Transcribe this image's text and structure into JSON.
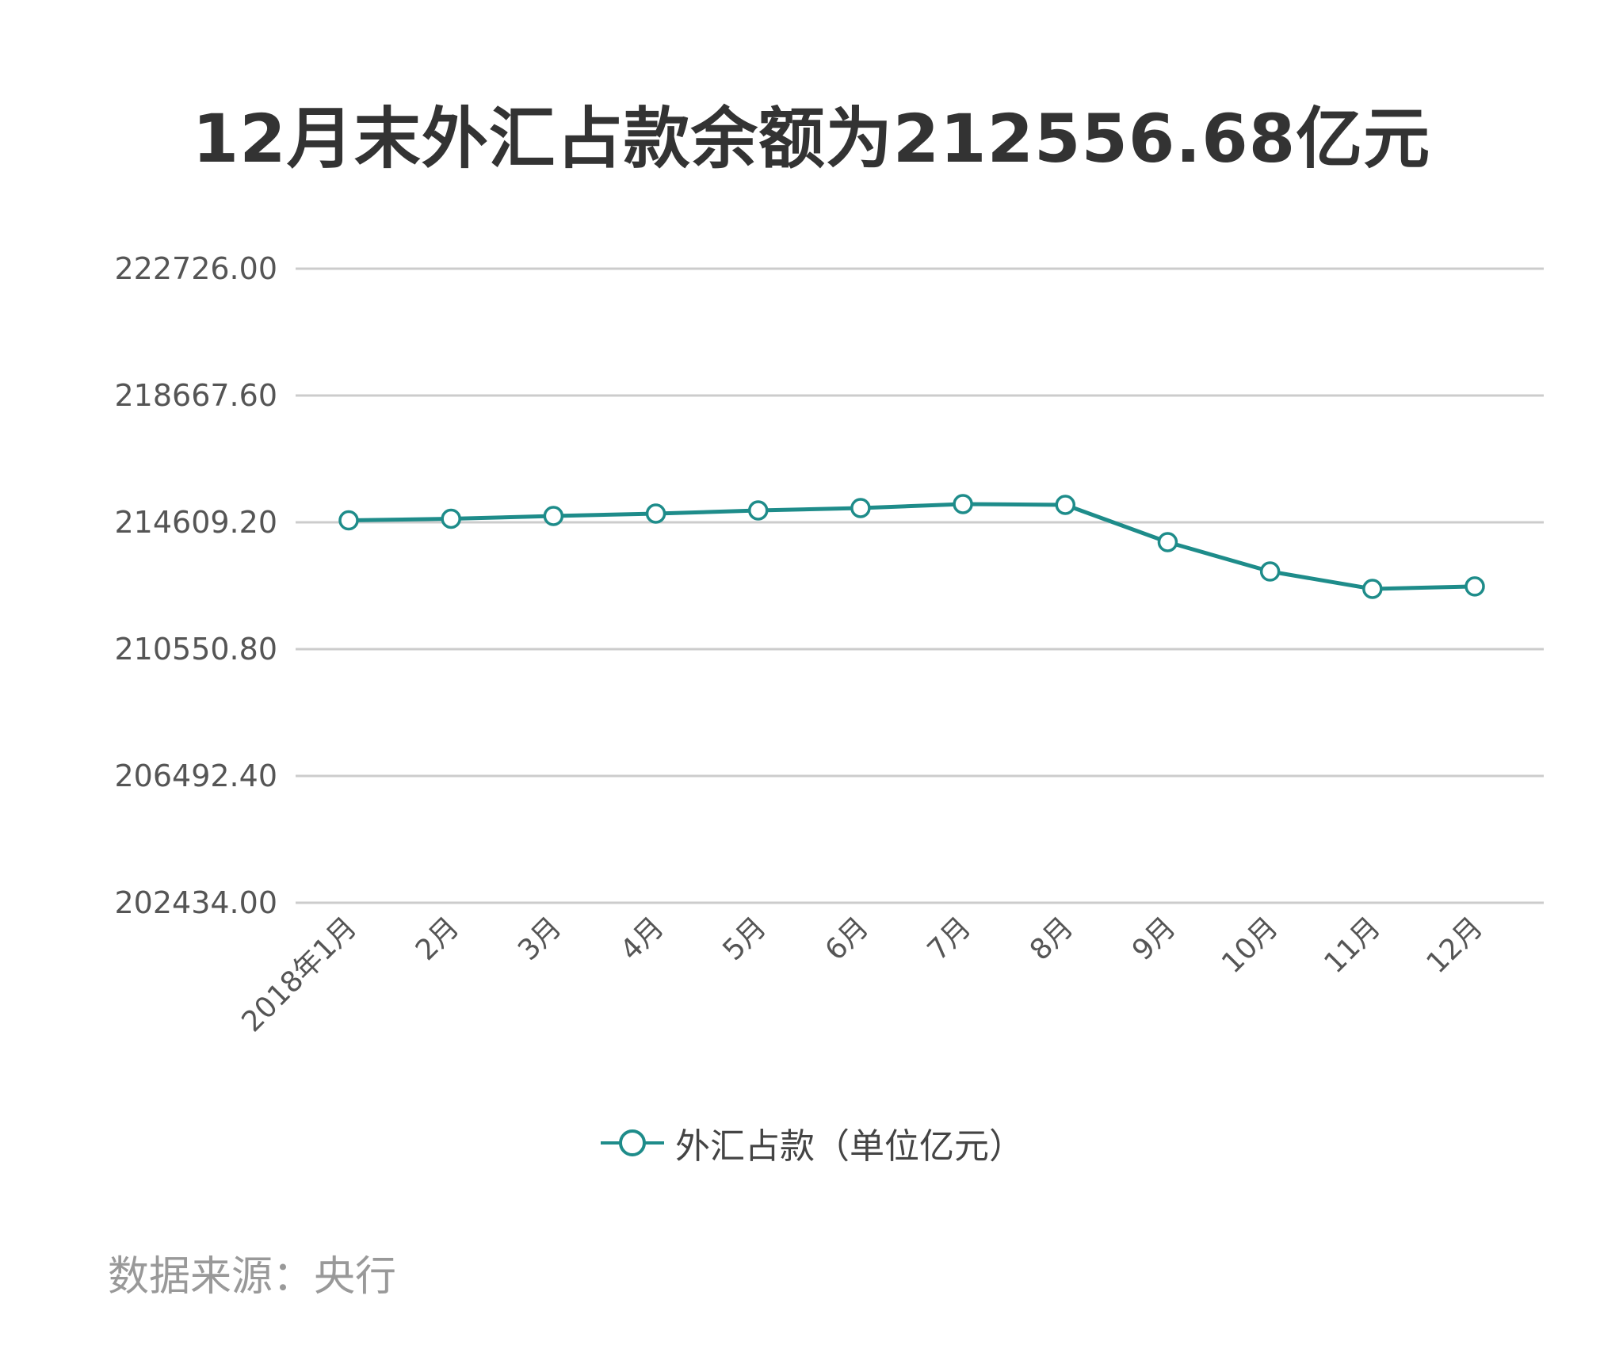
{
  "title": "12月末外汇占款余额为212556.68亿元",
  "legend": {
    "label": "外汇占款（单位亿元）",
    "color": "#1e8c8a"
  },
  "source": "数据来源：央行",
  "colors": {
    "line": "#1e8c8a",
    "grid": "#cccccc",
    "text": "#555555",
    "title": "#333333"
  },
  "chart_data": {
    "type": "line",
    "title": "12月末外汇占款余额为212556.68亿元",
    "xlabel": "",
    "ylabel": "",
    "categories": [
      "2018年1月",
      "2月",
      "3月",
      "4月",
      "5月",
      "6月",
      "7月",
      "8月",
      "9月",
      "10月",
      "11月",
      "12月"
    ],
    "series": [
      {
        "name": "外汇占款（单位亿元）",
        "values": [
          214672,
          214723,
          214812,
          214888,
          214990,
          215066,
          215193,
          215167,
          213975,
          213036,
          212479,
          212556.68
        ]
      }
    ],
    "yticks": [
      "222726.00",
      "218667.60",
      "214609.20",
      "210550.80",
      "206492.40",
      "202434.00"
    ],
    "ylim": [
      202434.0,
      222726.0
    ],
    "grid": true,
    "legend_position": "bottom"
  }
}
